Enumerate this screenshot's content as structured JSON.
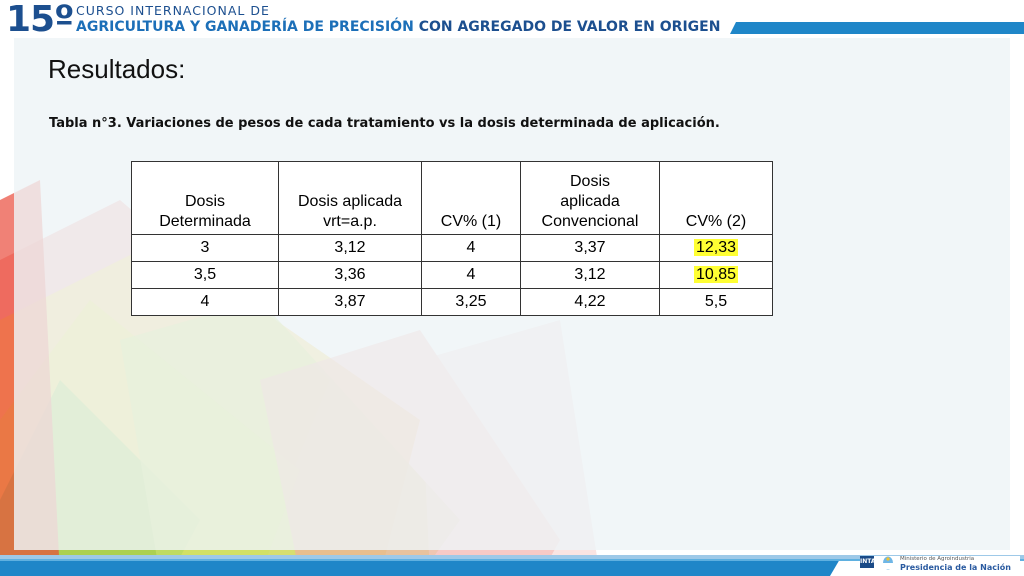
{
  "header": {
    "number": "15º",
    "line1": "CURSO INTERNACIONAL DE",
    "line2_part1": "AGRICULTURA Y GANADERÍA DE PRECISIÓN",
    "line2_part2": "CON AGREGADO DE VALOR EN ORIGEN"
  },
  "title": "Resultados:",
  "caption": "Tabla n°3. Variaciones de pesos de cada tratamiento vs la dosis determinada de aplicación.",
  "table": {
    "headers": [
      [
        "Dosis",
        "Determinada"
      ],
      [
        "Dosis aplicada",
        "vrt=a.p."
      ],
      [
        "CV% (1)"
      ],
      [
        "Dosis",
        "aplicada",
        "Convencional"
      ],
      [
        "CV% (2)"
      ]
    ],
    "rows": [
      [
        "3",
        "3,12",
        "4",
        "3,37",
        "12,33"
      ],
      [
        "3,5",
        "3,36",
        "4",
        "3,12",
        "10,85"
      ],
      [
        "4",
        "3,87",
        "3,25",
        "4,22",
        "5,5"
      ]
    ],
    "highlight_color": "#ffff33"
  },
  "footer": {
    "logo1": "INTA",
    "ministry_line": "Ministerio de Agroindustria",
    "presidency_line": "Presidencia de la Nación"
  },
  "colors": {
    "brand_dark_blue": "#1c4f8f",
    "brand_blue": "#1c6fb8",
    "stripe_blue": "#1f86c8"
  }
}
